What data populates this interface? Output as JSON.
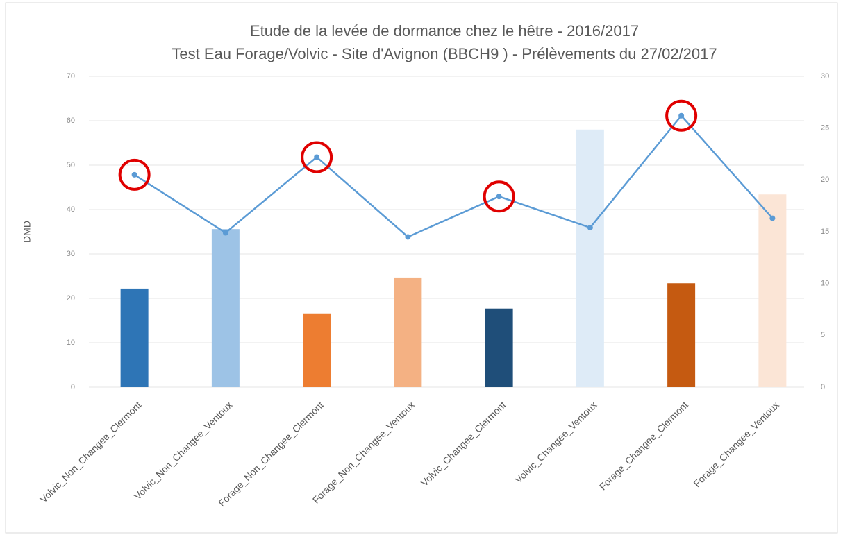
{
  "chart_data": {
    "type": "combo",
    "title": "Etude de la levée de dormance chez le hêtre - 2016/2017",
    "subtitle": "Test Eau Forage/Volvic - Site d'Avignon (BBCH9 ) - Prélèvements du 27/02/2017",
    "ylabel": "DMD",
    "categories": [
      "Volvic_Non_Changee_Clermont",
      "Volvic_Non_Changee_Ventoux",
      "Forage_Non_Changee_Clermont",
      "Forage_Non_Changee_Ventoux",
      "Volvic_Changee_Clermont",
      "Volvic_Changee_Ventoux",
      "Forage_Changee_Clermont",
      "Forage_Changee_Ventoux"
    ],
    "series": [
      {
        "type": "bar",
        "colors": [
          "#2e75b6",
          "#9dc3e6",
          "#ed7d31",
          "#f4b183",
          "#1f4e79",
          "#deebf7",
          "#c55a11",
          "#fbe5d6"
        ],
        "values": [
          22.2,
          35.6,
          16.6,
          24.7,
          17.7,
          58,
          23.4,
          43.4
        ]
      },
      {
        "type": "line",
        "axis": "y2",
        "color": "#5b9bd5",
        "values": [
          20.5,
          14.9,
          22.2,
          14.5,
          18.4,
          15.4,
          26.2,
          16.3
        ]
      }
    ],
    "highlighted": [
      0,
      2,
      4,
      6
    ],
    "highlight_color": "#e00000",
    "ylim": [
      0,
      70
    ],
    "yticks": [
      0,
      10,
      20,
      30,
      40,
      50,
      60,
      70
    ],
    "y2lim": [
      0,
      30
    ],
    "y2ticks": [
      0,
      5,
      10,
      15,
      20,
      25,
      30
    ],
    "grid": true
  }
}
